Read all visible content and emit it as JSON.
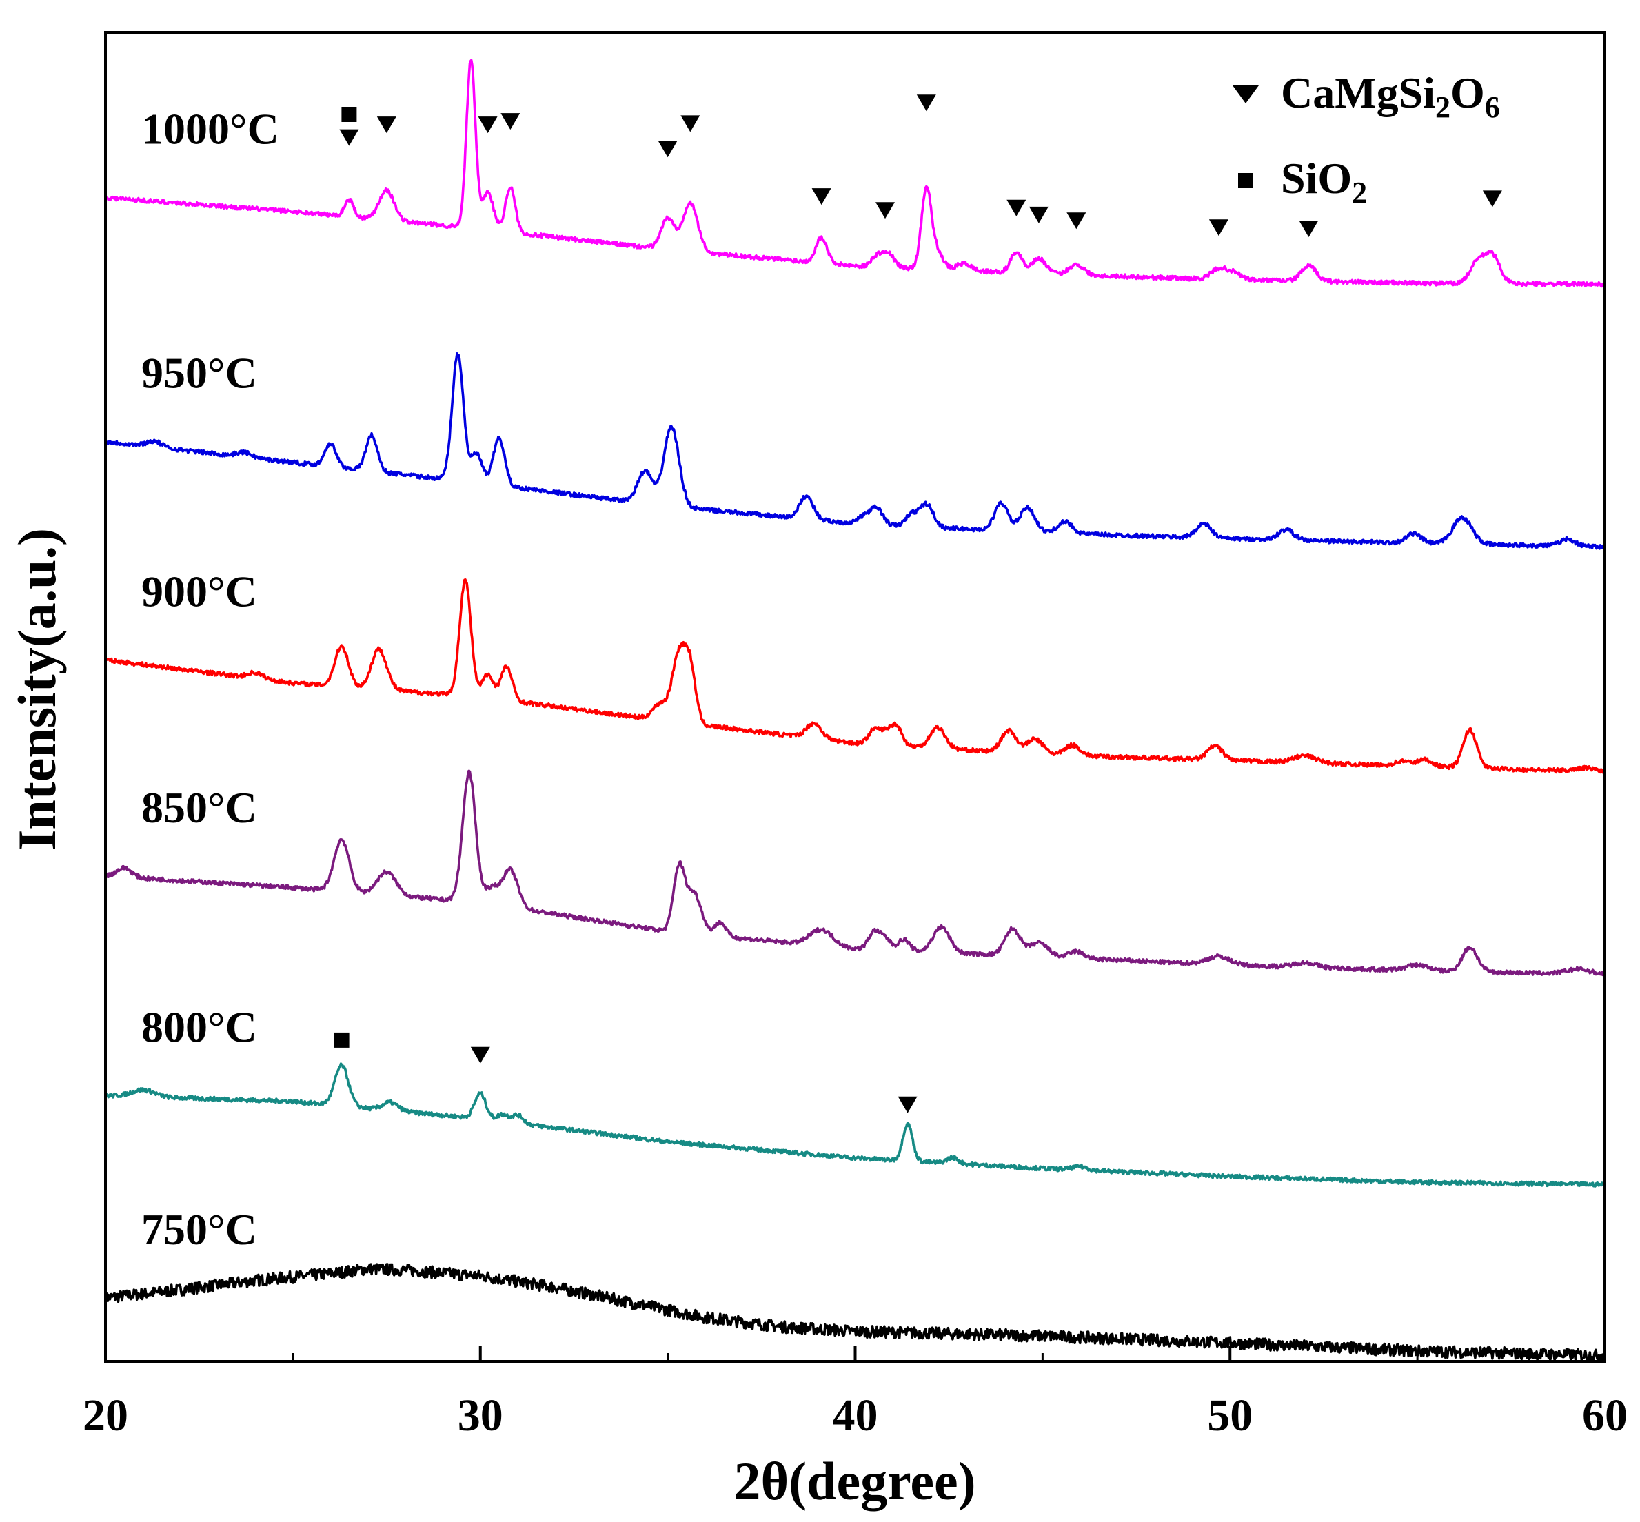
{
  "chart_data": {
    "type": "line",
    "title": "",
    "xlabel": "2θ(degree)",
    "ylabel": "Intensity(a.u.)",
    "xlim": [
      20,
      60
    ],
    "xticks": [
      "20",
      "30",
      "40",
      "50",
      "60"
    ],
    "ylim": [
      0,
      115
    ],
    "grid": false,
    "legend": {
      "position": "top-right",
      "entries": [
        {
          "marker": "triangle-down",
          "text_main": "CaMgSi",
          "sub1": "2",
          "text_mid": "O",
          "sub2": "6"
        },
        {
          "marker": "square",
          "text_main": "SiO",
          "sub1": "2",
          "text_mid": "",
          "sub2": ""
        }
      ]
    },
    "series": [
      {
        "name": "750°C",
        "color": "#000000",
        "noise": 1.0,
        "baseline": [
          [
            20,
            5.5
          ],
          [
            22,
            6.2
          ],
          [
            24,
            7.0
          ],
          [
            26,
            7.6
          ],
          [
            27,
            8.0
          ],
          [
            28,
            7.9
          ],
          [
            30,
            7.4
          ],
          [
            32,
            6.4
          ],
          [
            34,
            5.1
          ],
          [
            36,
            3.8
          ],
          [
            38,
            3.0
          ],
          [
            40,
            2.6
          ],
          [
            45,
            2.2
          ],
          [
            50,
            1.6
          ],
          [
            55,
            0.9
          ],
          [
            60,
            0.5
          ]
        ],
        "peaks": [],
        "markers": []
      },
      {
        "name": "800°C",
        "color": "#168a84",
        "noise": 0.35,
        "baseline": [
          [
            20,
            23.0
          ],
          [
            25,
            22.5
          ],
          [
            30,
            21.0
          ],
          [
            35,
            19.0
          ],
          [
            40,
            17.6
          ],
          [
            45,
            16.7
          ],
          [
            50,
            16.0
          ],
          [
            55,
            15.5
          ],
          [
            60,
            15.3
          ]
        ],
        "peaks": [
          [
            21,
            0.6,
            0.3
          ],
          [
            26.3,
            3.5,
            0.18
          ],
          [
            27.6,
            0.7,
            0.2
          ],
          [
            30.0,
            2.2,
            0.15
          ],
          [
            30.6,
            0.6,
            0.15
          ],
          [
            31.0,
            0.7,
            0.15
          ],
          [
            41.4,
            3.2,
            0.13
          ],
          [
            42.6,
            0.5,
            0.15
          ],
          [
            46.0,
            0.3,
            0.2
          ]
        ],
        "markers": [
          {
            "x": 26.3,
            "type": "square",
            "level": 27.8
          },
          {
            "x": 30.0,
            "type": "tri",
            "level": 26.5
          },
          {
            "x": 41.4,
            "type": "tri",
            "level": 22.2
          }
        ]
      },
      {
        "name": "850°C",
        "color": "#7b1a7e",
        "noise": 0.35,
        "baseline": [
          [
            20,
            42.0
          ],
          [
            25,
            41.0
          ],
          [
            30,
            39.7
          ],
          [
            35,
            37.2
          ],
          [
            40,
            35.7
          ],
          [
            45,
            35.0
          ],
          [
            50,
            34.3
          ],
          [
            55,
            33.8
          ],
          [
            60,
            33.5
          ]
        ],
        "peaks": [
          [
            20.5,
            0.8,
            0.2
          ],
          [
            26.3,
            4.5,
            0.2
          ],
          [
            27.5,
            2.0,
            0.25
          ],
          [
            29.7,
            11.2,
            0.17
          ],
          [
            30.3,
            1.4,
            0.2
          ],
          [
            30.8,
            3.2,
            0.2
          ],
          [
            35.3,
            5.5,
            0.15
          ],
          [
            35.7,
            3.5,
            0.2
          ],
          [
            36.4,
            1.2,
            0.15
          ],
          [
            39.1,
            1.4,
            0.3
          ],
          [
            40.5,
            1.5,
            0.15
          ],
          [
            40.8,
            1.0,
            0.15
          ],
          [
            41.3,
            1.0,
            0.15
          ],
          [
            42.3,
            2.2,
            0.22
          ],
          [
            44.2,
            2.3,
            0.2
          ],
          [
            44.9,
            1.2,
            0.25
          ],
          [
            45.9,
            0.6,
            0.2
          ],
          [
            49.7,
            0.7,
            0.3
          ],
          [
            52.0,
            0.4,
            0.3
          ],
          [
            55.0,
            0.5,
            0.3
          ],
          [
            56.4,
            2.1,
            0.2
          ],
          [
            59.3,
            0.4,
            0.3
          ]
        ],
        "markers": []
      },
      {
        "name": "900°C",
        "color": "#ff0000",
        "noise": 0.35,
        "baseline": [
          [
            20,
            60.7
          ],
          [
            25,
            58.7
          ],
          [
            30,
            57.5
          ],
          [
            35,
            55.4
          ],
          [
            40,
            53.5
          ],
          [
            45,
            52.5
          ],
          [
            50,
            52.0
          ],
          [
            55,
            51.5
          ],
          [
            60,
            51.0
          ]
        ],
        "peaks": [
          [
            24.0,
            0.5,
            0.2
          ],
          [
            26.3,
            3.5,
            0.18
          ],
          [
            27.3,
            3.5,
            0.2
          ],
          [
            29.6,
            10.0,
            0.15
          ],
          [
            30.2,
            2.0,
            0.15
          ],
          [
            30.7,
            2.9,
            0.15
          ],
          [
            34.8,
            1.4,
            0.2
          ],
          [
            35.3,
            5.8,
            0.18
          ],
          [
            35.6,
            4.5,
            0.15
          ],
          [
            38.9,
            1.3,
            0.2
          ],
          [
            40.5,
            1.2,
            0.15
          ],
          [
            40.8,
            1.0,
            0.15
          ],
          [
            41.1,
            1.7,
            0.15
          ],
          [
            42.2,
            1.8,
            0.2
          ],
          [
            44.1,
            1.9,
            0.2
          ],
          [
            44.8,
            1.3,
            0.22
          ],
          [
            45.8,
            0.9,
            0.2
          ],
          [
            49.6,
            1.2,
            0.2
          ],
          [
            52.0,
            0.6,
            0.3
          ],
          [
            54.6,
            0.4,
            0.2
          ],
          [
            55.2,
            0.6,
            0.2
          ],
          [
            56.4,
            3.3,
            0.18
          ],
          [
            59.5,
            0.3,
            0.3
          ]
        ],
        "markers": []
      },
      {
        "name": "950°C",
        "color": "#0000e0",
        "noise": 0.35,
        "baseline": [
          [
            20,
            79.6
          ],
          [
            25,
            77.8
          ],
          [
            30,
            76.0
          ],
          [
            35,
            74.0
          ],
          [
            40,
            72.5
          ],
          [
            45,
            71.7
          ],
          [
            50,
            71.2
          ],
          [
            55,
            70.8
          ],
          [
            60,
            70.5
          ]
        ],
        "peaks": [
          [
            21.3,
            0.5,
            0.2
          ],
          [
            23.7,
            0.4,
            0.2
          ],
          [
            26.0,
            2.0,
            0.15
          ],
          [
            27.1,
            3.1,
            0.15
          ],
          [
            29.4,
            11.0,
            0.15
          ],
          [
            29.9,
            2.5,
            0.15
          ],
          [
            30.5,
            4.1,
            0.15
          ],
          [
            34.4,
            2.8,
            0.2
          ],
          [
            35.1,
            6.9,
            0.2
          ],
          [
            38.7,
            2.0,
            0.18
          ],
          [
            40.3,
            0.8,
            0.2
          ],
          [
            40.6,
            1.2,
            0.15
          ],
          [
            41.5,
            1.0,
            0.15
          ],
          [
            41.9,
            2.0,
            0.18
          ],
          [
            43.9,
            2.4,
            0.18
          ],
          [
            44.6,
            2.1,
            0.2
          ],
          [
            45.6,
            1.0,
            0.2
          ],
          [
            49.3,
            1.2,
            0.2
          ],
          [
            51.5,
            0.9,
            0.2
          ],
          [
            54.9,
            0.8,
            0.2
          ],
          [
            56.2,
            2.3,
            0.25
          ],
          [
            59.0,
            0.6,
            0.2
          ]
        ],
        "markers": []
      },
      {
        "name": "1000°C",
        "color": "#ff00ff",
        "noise": 0.35,
        "baseline": [
          [
            20,
            100.7
          ],
          [
            25,
            99.5
          ],
          [
            30,
            98.0
          ],
          [
            35,
            96.2
          ],
          [
            40,
            94.8
          ],
          [
            45,
            94.1
          ],
          [
            50,
            93.6
          ],
          [
            55,
            93.3
          ],
          [
            60,
            93.2
          ]
        ],
        "peaks": [
          [
            26.5,
            1.5,
            0.12
          ],
          [
            27.5,
            2.6,
            0.2
          ],
          [
            29.75,
            14.5,
            0.12
          ],
          [
            30.2,
            3.2,
            0.15
          ],
          [
            30.8,
            3.9,
            0.13
          ],
          [
            35.0,
            2.7,
            0.18
          ],
          [
            35.6,
            4.2,
            0.2
          ],
          [
            39.1,
            2.2,
            0.15
          ],
          [
            40.6,
            1.0,
            0.15
          ],
          [
            40.9,
            1.1,
            0.15
          ],
          [
            41.9,
            7.0,
            0.13
          ],
          [
            42.2,
            1.5,
            0.15
          ],
          [
            42.9,
            0.6,
            0.2
          ],
          [
            44.3,
            1.8,
            0.15
          ],
          [
            44.9,
            1.3,
            0.2
          ],
          [
            45.9,
            0.9,
            0.2
          ],
          [
            49.7,
            0.9,
            0.2
          ],
          [
            50.1,
            0.6,
            0.2
          ],
          [
            52.1,
            1.3,
            0.2
          ],
          [
            56.6,
            1.8,
            0.2
          ],
          [
            57.0,
            2.4,
            0.2
          ]
        ],
        "markers": [
          {
            "x": 26.5,
            "type": "square",
            "level": 107.9
          },
          {
            "x": 26.5,
            "type": "tri",
            "level": 105.9
          },
          {
            "x": 27.5,
            "type": "tri",
            "level": 107.0
          },
          {
            "x": 29.75,
            "type": "tri",
            "level": 118.8
          },
          {
            "x": 30.2,
            "type": "tri",
            "level": 107.0
          },
          {
            "x": 30.8,
            "type": "tri",
            "level": 107.3
          },
          {
            "x": 35.0,
            "type": "tri",
            "level": 104.9
          },
          {
            "x": 35.6,
            "type": "tri",
            "level": 107.1
          },
          {
            "x": 39.1,
            "type": "tri",
            "level": 100.8
          },
          {
            "x": 40.8,
            "type": "tri",
            "level": 99.6
          },
          {
            "x": 41.9,
            "type": "tri",
            "level": 108.9
          },
          {
            "x": 44.3,
            "type": "tri",
            "level": 99.8
          },
          {
            "x": 44.9,
            "type": "tri",
            "level": 99.2
          },
          {
            "x": 45.9,
            "type": "tri",
            "level": 98.7
          },
          {
            "x": 49.7,
            "type": "tri",
            "level": 98.1
          },
          {
            "x": 52.1,
            "type": "tri",
            "level": 98.0
          },
          {
            "x": 57.0,
            "type": "tri",
            "level": 100.6
          }
        ]
      }
    ]
  }
}
